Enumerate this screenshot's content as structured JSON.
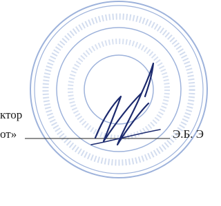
{
  "document": {
    "lines": [
      {
        "text": "ктор"
      },
      {
        "text": "от»"
      }
    ],
    "signature_name": "Э.Б. Э"
  }
}
